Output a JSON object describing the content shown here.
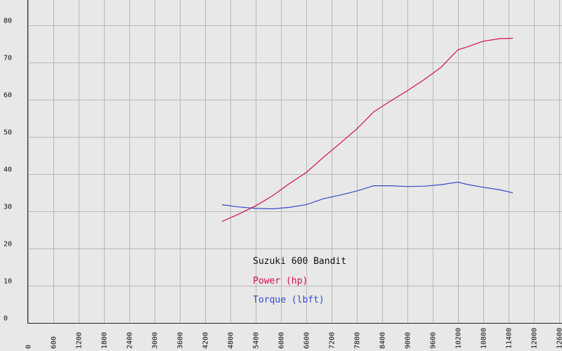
{
  "chart_data": {
    "type": "line",
    "title": "Suzuki 600 Bandit",
    "xlabel": "",
    "ylabel": "",
    "xlim": [
      0,
      12600
    ],
    "ylim": [
      0,
      85
    ],
    "x_ticks": [
      "0",
      "600",
      "1200",
      "1800",
      "2400",
      "3000",
      "3600",
      "4200",
      "4800",
      "5400",
      "6000",
      "6600",
      "7200",
      "7800",
      "8400",
      "9000",
      "9600",
      "10200",
      "10800",
      "11400",
      "12000",
      "12600"
    ],
    "y_ticks": [
      "0",
      "10",
      "20",
      "30",
      "40",
      "50",
      "60",
      "70",
      "80"
    ],
    "grid": true,
    "legend": "bottom-center",
    "series": [
      {
        "name": "Power (hp)",
        "color": "#d01048",
        "points": [
          [
            4600,
            27.3
          ],
          [
            5000,
            29.3
          ],
          [
            5400,
            31.5
          ],
          [
            5800,
            34.2
          ],
          [
            6200,
            37.5
          ],
          [
            6600,
            40.5
          ],
          [
            7000,
            44.5
          ],
          [
            7400,
            48.3
          ],
          [
            7800,
            52.2
          ],
          [
            8200,
            56.8
          ],
          [
            8600,
            59.7
          ],
          [
            9000,
            62.5
          ],
          [
            9400,
            65.5
          ],
          [
            9800,
            68.8
          ],
          [
            10000,
            71.2
          ],
          [
            10200,
            73.5
          ],
          [
            10400,
            74.2
          ],
          [
            10800,
            75.8
          ],
          [
            11200,
            76.5
          ],
          [
            11500,
            76.6
          ]
        ]
      },
      {
        "name": "Torque (lbft)",
        "color": "#3848c8",
        "points": [
          [
            4600,
            31.8
          ],
          [
            5000,
            31.2
          ],
          [
            5400,
            30.8
          ],
          [
            5800,
            30.7
          ],
          [
            6200,
            31.1
          ],
          [
            6600,
            31.8
          ],
          [
            7000,
            33.4
          ],
          [
            7400,
            34.4
          ],
          [
            7800,
            35.5
          ],
          [
            8200,
            36.9
          ],
          [
            8600,
            36.9
          ],
          [
            9000,
            36.7
          ],
          [
            9400,
            36.8
          ],
          [
            9800,
            37.2
          ],
          [
            10200,
            37.9
          ],
          [
            10400,
            37.3
          ],
          [
            10800,
            36.5
          ],
          [
            11200,
            35.8
          ],
          [
            11500,
            35.0
          ]
        ]
      }
    ]
  }
}
